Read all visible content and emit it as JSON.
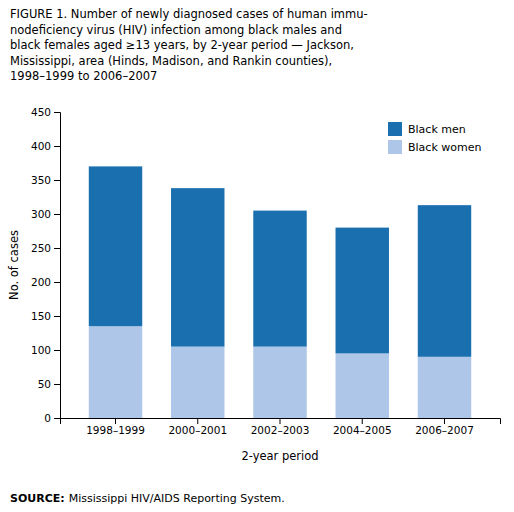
{
  "chart_data": {
    "type": "bar",
    "stacked": true,
    "title": "FIGURE 1. Number of newly diagnosed cases of human immu-\nnodeficiency virus (HIV) infection among black males and\nblack females aged ≥13 years, by 2-year period — Jackson,\nMississippi, area (Hinds, Madison, and Rankin counties),\n1998–1999 to 2006–2007",
    "source": {
      "label": "SOURCE:",
      "text": "Mississippi HIV/AIDS Reporting System."
    },
    "xlabel": "2-year period",
    "ylabel": "No. of cases",
    "categories": [
      "1998–1999",
      "2000–2001",
      "2002–2003",
      "2004–2005",
      "2006–2007"
    ],
    "series": [
      {
        "name": "Black women",
        "color": "#aec6e8",
        "values": [
          135,
          105,
          105,
          95,
          90
        ]
      },
      {
        "name": "Black men",
        "color": "#1a6faf",
        "values": [
          235,
          233,
          200,
          185,
          223
        ]
      }
    ],
    "ylim": [
      0,
      450
    ],
    "yticks": [
      0,
      50,
      100,
      150,
      200,
      250,
      300,
      350,
      400,
      450
    ],
    "grid": false,
    "legend": "upper right"
  }
}
